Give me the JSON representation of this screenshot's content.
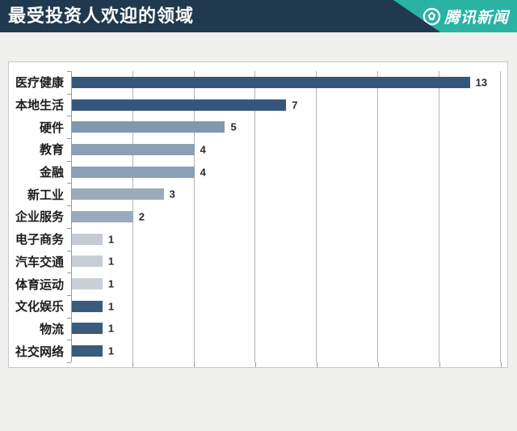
{
  "header": {
    "title": "最受投资人欢迎的领域",
    "brand": "腾讯新闻",
    "header_bg": "#20394f",
    "brand_bg": "#2ab3a3"
  },
  "chart_data": {
    "type": "bar",
    "orientation": "horizontal",
    "title": "最受投资人欢迎的领域",
    "categories": [
      "医疗健康",
      "本地生活",
      "硬件",
      "教育",
      "金融",
      "新工业",
      "企业服务",
      "电子商务",
      "汽车交通",
      "体育运动",
      "文化娱乐",
      "物流",
      "社交网络"
    ],
    "values": [
      13,
      7,
      5,
      4,
      4,
      3,
      2,
      1,
      1,
      1,
      1,
      1,
      1
    ],
    "bar_colors": [
      "#35577b",
      "#35577b",
      "#8098ae",
      "#8a9fb3",
      "#8a9fb3",
      "#9cabbb",
      "#9cabbb",
      "#c5cbd2",
      "#c8cdd5",
      "#cbd0d8",
      "#3a5b7b",
      "#3a5b7b",
      "#3a5b7b"
    ],
    "xlim": [
      0,
      14.25
    ],
    "gridline_values": [
      2,
      4,
      6,
      8,
      10,
      12,
      14
    ],
    "grid": true,
    "value_labels": true,
    "legend": "none",
    "xlabel": "",
    "ylabel": ""
  }
}
